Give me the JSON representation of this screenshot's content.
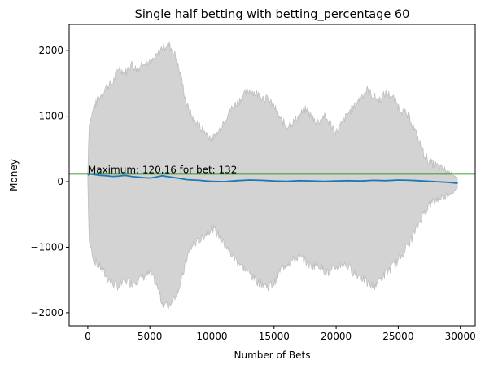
{
  "chart_data": {
    "type": "line",
    "title": "Single half betting with betting_percentage 60",
    "xlabel": "Number of Bets",
    "ylabel": "Money",
    "xlim": [
      -1500,
      31200
    ],
    "ylim": [
      -2200,
      2400
    ],
    "xticks": [
      0,
      5000,
      10000,
      15000,
      20000,
      25000,
      30000
    ],
    "xtick_labels": [
      "0",
      "5000",
      "10000",
      "15000",
      "20000",
      "25000",
      "30000"
    ],
    "yticks": [
      -2000,
      -1000,
      0,
      1000,
      2000
    ],
    "ytick_labels": [
      "−2000",
      "−1000",
      "0",
      "1000",
      "2000"
    ],
    "grid": false,
    "legend": "none",
    "colors": {
      "envelope_fill": "#d3d3d3",
      "envelope_edge": "#bfbfbf",
      "series": "#1f77b4",
      "max_line": "#008000"
    },
    "envelope": {
      "x": [
        0,
        100,
        500,
        1000,
        1500,
        2000,
        2500,
        3000,
        3500,
        4000,
        4500,
        5000,
        5500,
        6000,
        6500,
        7000,
        7500,
        8000,
        8500,
        9000,
        9500,
        10000,
        10500,
        11000,
        11500,
        12000,
        12500,
        13000,
        13500,
        14000,
        14500,
        15000,
        15500,
        16000,
        16500,
        17000,
        17500,
        18000,
        18500,
        19000,
        19500,
        20000,
        20500,
        21000,
        21500,
        22000,
        22500,
        23000,
        23500,
        24000,
        24500,
        25000,
        25500,
        26000,
        26500,
        27000,
        27500,
        28000,
        28500,
        29000,
        29500,
        29800
      ],
      "upper": [
        100,
        850,
        1150,
        1300,
        1450,
        1500,
        1750,
        1650,
        1800,
        1700,
        1850,
        1800,
        1900,
        2050,
        2100,
        1950,
        1600,
        1150,
        950,
        850,
        750,
        650,
        750,
        950,
        1100,
        1200,
        1300,
        1400,
        1350,
        1300,
        1250,
        1150,
        950,
        850,
        900,
        1000,
        1100,
        1000,
        900,
        1000,
        900,
        750,
        900,
        1050,
        1150,
        1300,
        1400,
        1300,
        1250,
        1350,
        1300,
        1150,
        1050,
        950,
        700,
        450,
        300,
        250,
        200,
        150,
        100,
        50
      ],
      "lower": [
        50,
        -900,
        -1200,
        -1300,
        -1450,
        -1550,
        -1600,
        -1500,
        -1550,
        -1500,
        -1450,
        -1400,
        -1550,
        -1850,
        -1900,
        -1750,
        -1550,
        -1150,
        -950,
        -900,
        -800,
        -700,
        -800,
        -950,
        -1100,
        -1200,
        -1300,
        -1400,
        -1500,
        -1550,
        -1600,
        -1550,
        -1350,
        -1250,
        -1200,
        -1150,
        -1200,
        -1300,
        -1250,
        -1350,
        -1400,
        -1300,
        -1250,
        -1300,
        -1400,
        -1450,
        -1550,
        -1600,
        -1500,
        -1400,
        -1300,
        -1200,
        -1050,
        -900,
        -700,
        -500,
        -350,
        -280,
        -230,
        -200,
        -150,
        -100
      ]
    },
    "series": [
      {
        "x": [
          0,
          132,
          500,
          1000,
          1500,
          2000,
          2500,
          3000,
          3500,
          4000,
          4500,
          5000,
          5500,
          6000,
          6500,
          7000,
          7500,
          8000,
          8500,
          9000,
          9500,
          10000,
          11000,
          12000,
          13000,
          14000,
          15000,
          16000,
          17000,
          18000,
          19000,
          20000,
          21000,
          22000,
          23000,
          24000,
          25000,
          26000,
          27000,
          28000,
          29000,
          29800
        ],
        "values": [
          100,
          120.16,
          110,
          95,
          90,
          80,
          85,
          95,
          80,
          70,
          60,
          55,
          70,
          90,
          75,
          60,
          45,
          30,
          25,
          20,
          10,
          5,
          0,
          15,
          25,
          20,
          10,
          5,
          15,
          10,
          5,
          10,
          15,
          10,
          20,
          15,
          25,
          20,
          10,
          0,
          -10,
          -25
        ]
      }
    ],
    "max_line": {
      "y": 120.16
    },
    "annotation": {
      "text": "Maximum: 120.16 for bet: 132",
      "x": 0,
      "y": 120.16
    }
  }
}
